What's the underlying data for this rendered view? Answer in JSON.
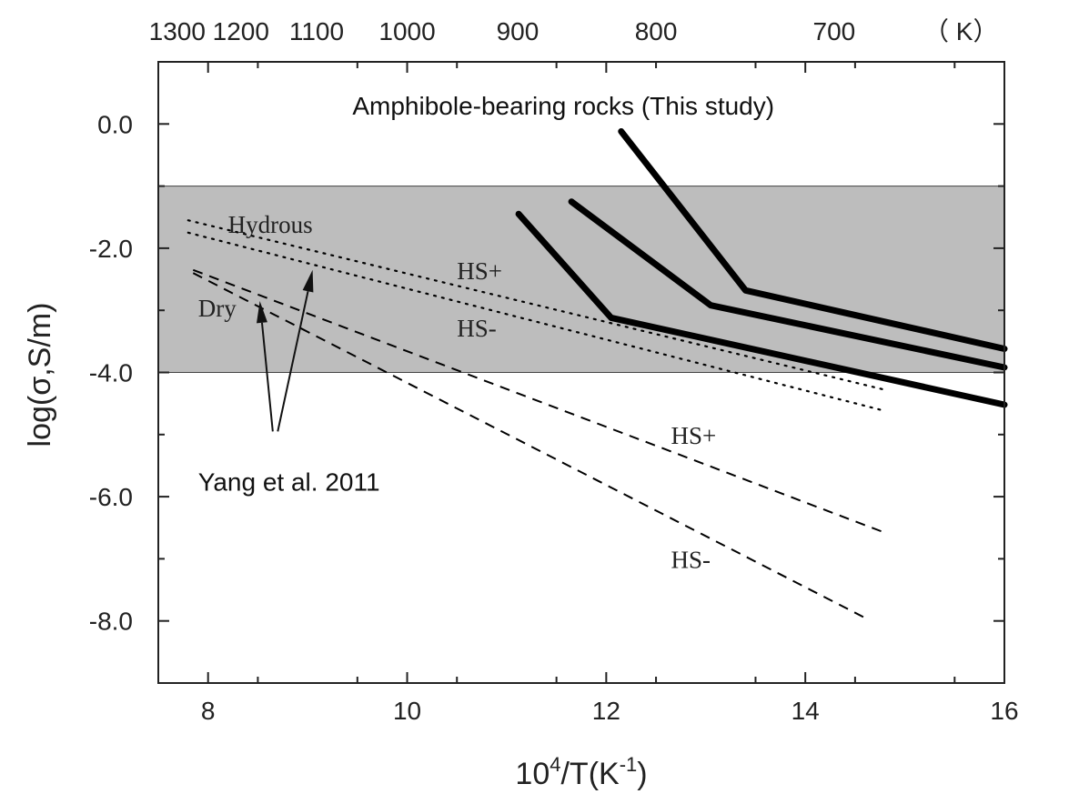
{
  "colors": {
    "band": "#bdbdbd",
    "line": "#000000",
    "text": "#222222"
  },
  "chart_data": {
    "type": "line",
    "xlabel_base": "10",
    "xlabel_sup1": "4",
    "xlabel_mid": "/T(K",
    "xlabel_sup2": "-1",
    "xlabel_end": ")",
    "ylabel": "log(σ,S/m)",
    "xlim": [
      7.5,
      16
    ],
    "ylim": [
      -9,
      1
    ],
    "x_ticks": [
      {
        "value": 8,
        "label": "8"
      },
      {
        "value": 10,
        "label": "10"
      },
      {
        "value": 12,
        "label": "12"
      },
      {
        "value": 14,
        "label": "14"
      },
      {
        "value": 16,
        "label": "16"
      }
    ],
    "y_ticks": [
      {
        "value": 0,
        "label": "0.0"
      },
      {
        "value": -2,
        "label": "-2.0"
      },
      {
        "value": -4,
        "label": "-4.0"
      },
      {
        "value": -6,
        "label": "-6.0"
      },
      {
        "value": -8,
        "label": "-8.0"
      }
    ],
    "top_axis_unit": "（ K）",
    "top_ticks": [
      {
        "label": "1300",
        "x": 7.69
      },
      {
        "label": "1200",
        "x": 8.33
      },
      {
        "label": "1100",
        "x": 9.09
      },
      {
        "label": "1000",
        "x": 10.0
      },
      {
        "label": "900",
        "x": 11.11
      },
      {
        "label": "800",
        "x": 12.5
      },
      {
        "label": "700",
        "x": 14.29
      }
    ],
    "shaded_band": {
      "y_min": -4,
      "y_max": -1
    },
    "series": [
      {
        "style": "solid",
        "points": [
          [
            12.15,
            -0.12
          ],
          [
            13.4,
            -2.68
          ],
          [
            16.0,
            -3.62
          ]
        ]
      },
      {
        "style": "solid",
        "points": [
          [
            11.65,
            -1.25
          ],
          [
            13.05,
            -2.92
          ],
          [
            16.0,
            -3.92
          ]
        ]
      },
      {
        "style": "solid",
        "points": [
          [
            11.12,
            -1.45
          ],
          [
            12.05,
            -3.12
          ],
          [
            16.0,
            -4.52
          ]
        ]
      },
      {
        "style": "dotted",
        "points": [
          [
            7.8,
            -1.55
          ],
          [
            14.8,
            -4.28
          ]
        ]
      },
      {
        "style": "dotted",
        "points": [
          [
            7.8,
            -1.75
          ],
          [
            14.8,
            -4.62
          ]
        ]
      },
      {
        "style": "dashed",
        "points": [
          [
            7.85,
            -2.35
          ],
          [
            14.8,
            -6.58
          ]
        ]
      },
      {
        "style": "dashed",
        "points": [
          [
            7.85,
            -2.4
          ],
          [
            14.6,
            -7.95
          ]
        ]
      }
    ],
    "annotations": [
      {
        "text": "Amphibole-bearing rocks  (This study)",
        "x": 9.45,
        "y": 0.15,
        "font": "sans"
      },
      {
        "text": "Hydrous",
        "x": 8.2,
        "y": -1.75,
        "font": "serif"
      },
      {
        "text": "HS+",
        "x": 10.5,
        "y": -2.5,
        "font": "serif"
      },
      {
        "text": "HS-",
        "x": 10.5,
        "y": -3.42,
        "font": "serif"
      },
      {
        "text": "Dry",
        "x": 7.9,
        "y": -3.1,
        "font": "serif"
      },
      {
        "text": "HS+",
        "x": 12.65,
        "y": -5.15,
        "font": "serif"
      },
      {
        "text": "HS-",
        "x": 12.65,
        "y": -7.15,
        "font": "serif"
      },
      {
        "text": "Yang et al. 2011",
        "x": 7.9,
        "y": -5.9,
        "font": "sans"
      }
    ],
    "arrows": [
      {
        "from": [
          8.65,
          -4.95
        ],
        "to": [
          8.52,
          -2.85
        ]
      },
      {
        "from": [
          8.7,
          -4.95
        ],
        "to": [
          9.05,
          -2.35
        ]
      }
    ]
  }
}
